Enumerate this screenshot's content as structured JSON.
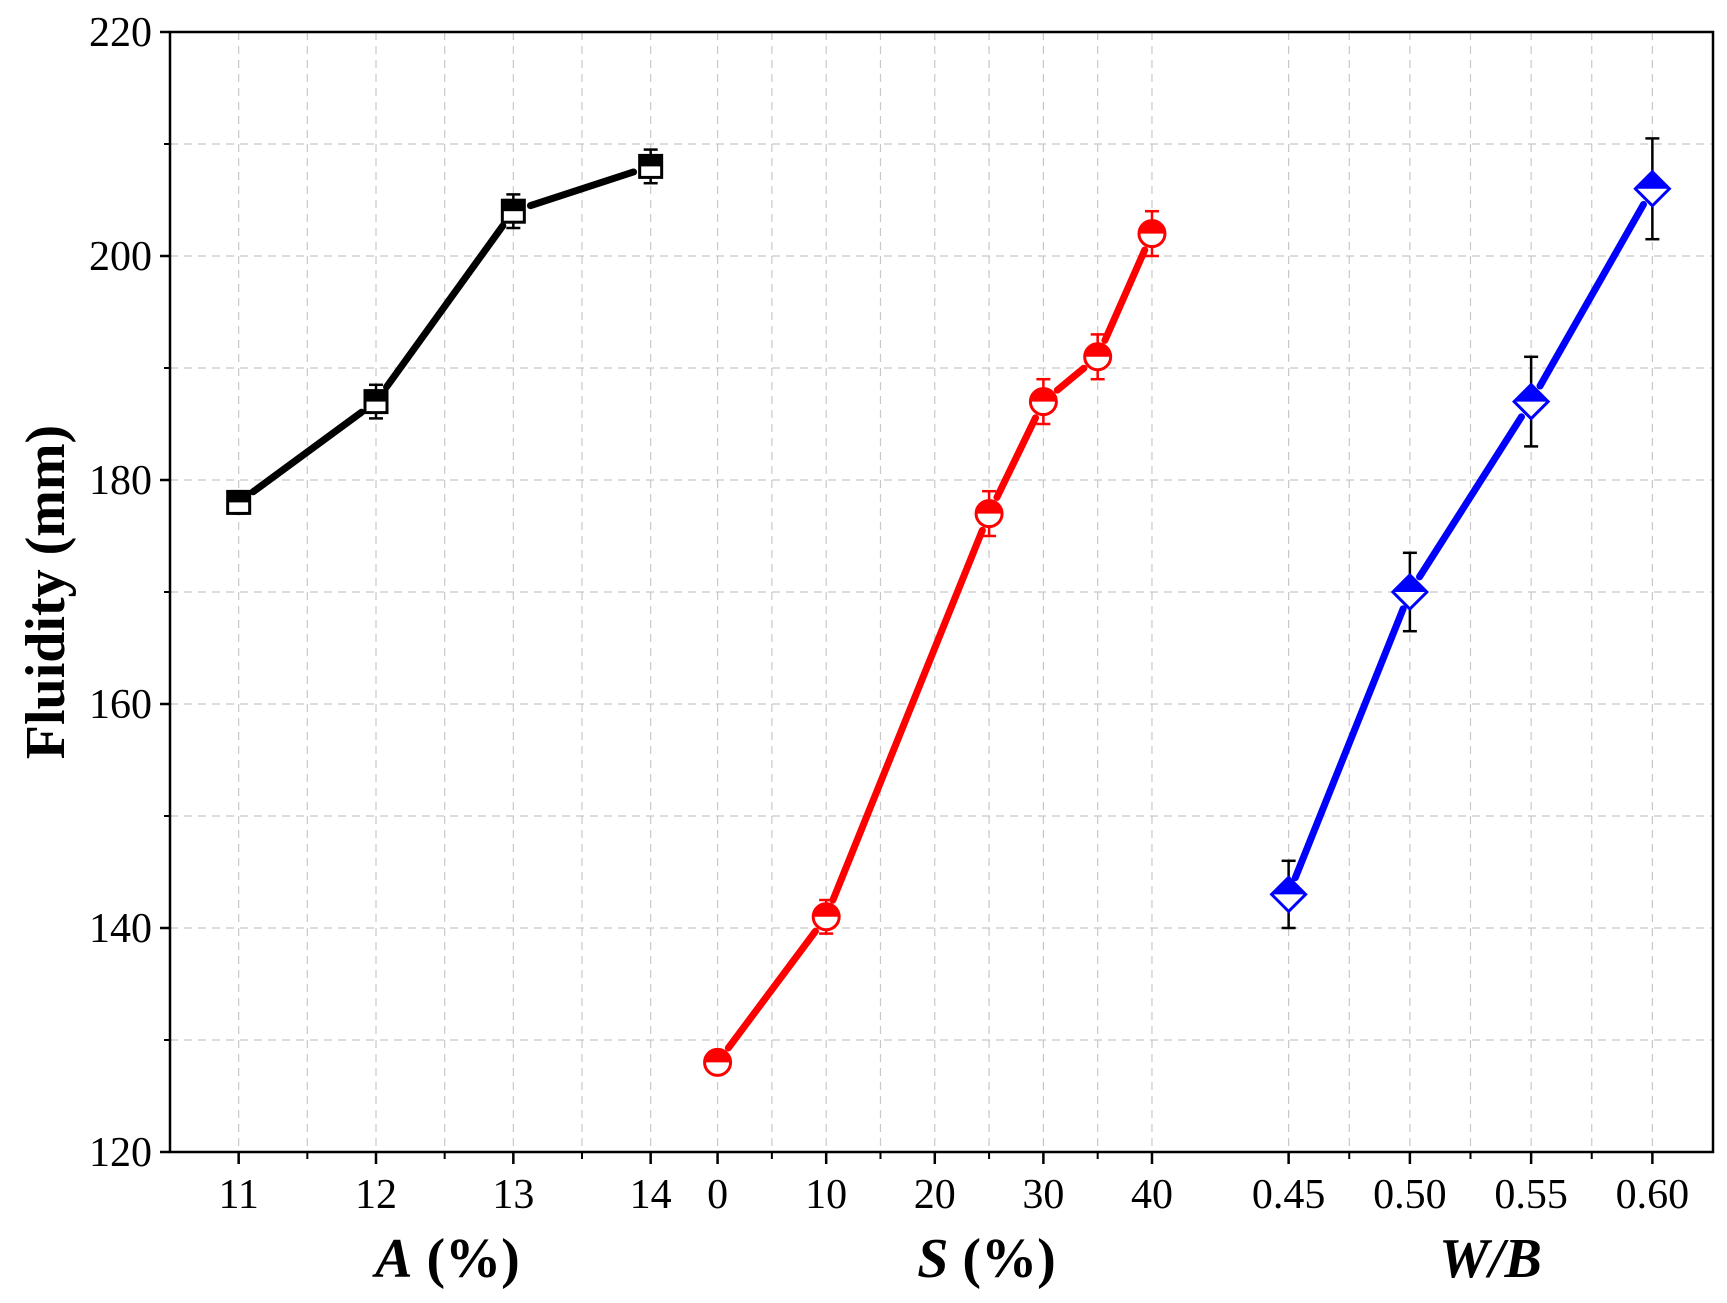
{
  "chart_data": {
    "type": "line",
    "ylabel": "Fluidity (mm)",
    "ylim": [
      120,
      220
    ],
    "yticks": [
      "120",
      "140",
      "160",
      "180",
      "200",
      "220"
    ],
    "panels": [
      {
        "xlabel_var": "A",
        "xlabel_unit": " (%)",
        "xlim": [
          10.5,
          14.25
        ],
        "xticks": [
          {
            "v": 11,
            "t": "11"
          },
          {
            "v": 12,
            "t": "12"
          },
          {
            "v": 13,
            "t": "13"
          },
          {
            "v": 14,
            "t": "14"
          }
        ],
        "xgrid": [
          11.5,
          12.5,
          13.5
        ],
        "series": {
          "name": "A",
          "color": "#000000",
          "marker": "square",
          "points": [
            {
              "x": 11,
              "y": 178,
              "err": 1
            },
            {
              "x": 12,
              "y": 187,
              "err": 1.5
            },
            {
              "x": 13,
              "y": 204,
              "err": 1.5
            },
            {
              "x": 14,
              "y": 208,
              "err": 1.5
            }
          ]
        }
      },
      {
        "xlabel_var": "S",
        "xlabel_unit": " (%)",
        "xlim": [
          -3,
          47
        ],
        "xticks": [
          {
            "v": 0,
            "t": "0"
          },
          {
            "v": 10,
            "t": "10"
          },
          {
            "v": 20,
            "t": "20"
          },
          {
            "v": 30,
            "t": "30"
          },
          {
            "v": 40,
            "t": "40"
          }
        ],
        "xgrid": [
          5,
          15,
          25,
          35
        ],
        "series": {
          "name": "S",
          "color": "#ff0000",
          "marker": "circle",
          "points": [
            {
              "x": 0,
              "y": 128,
              "err": 1
            },
            {
              "x": 10,
              "y": 141,
              "err": 1.5
            },
            {
              "x": 25,
              "y": 177,
              "err": 2
            },
            {
              "x": 30,
              "y": 187,
              "err": 2
            },
            {
              "x": 35,
              "y": 191,
              "err": 2
            },
            {
              "x": 40,
              "y": 202,
              "err": 2
            }
          ]
        }
      },
      {
        "xlabel_var": "W/B",
        "xlabel_unit": "",
        "xlim": [
          0.425,
          0.625
        ],
        "xticks": [
          {
            "v": 0.45,
            "t": "0.45"
          },
          {
            "v": 0.5,
            "t": "0.50"
          },
          {
            "v": 0.55,
            "t": "0.55"
          },
          {
            "v": 0.6,
            "t": "0.60"
          }
        ],
        "xgrid": [
          0.475,
          0.525,
          0.575
        ],
        "series": {
          "name": "W/B",
          "color": "#0000ff",
          "marker": "diamond",
          "points": [
            {
              "x": 0.45,
              "y": 143,
              "err": 3
            },
            {
              "x": 0.5,
              "y": 170,
              "err": 3.5
            },
            {
              "x": 0.55,
              "y": 187,
              "err": 4
            },
            {
              "x": 0.6,
              "y": 206,
              "err": 4.5
            }
          ]
        }
      }
    ]
  }
}
